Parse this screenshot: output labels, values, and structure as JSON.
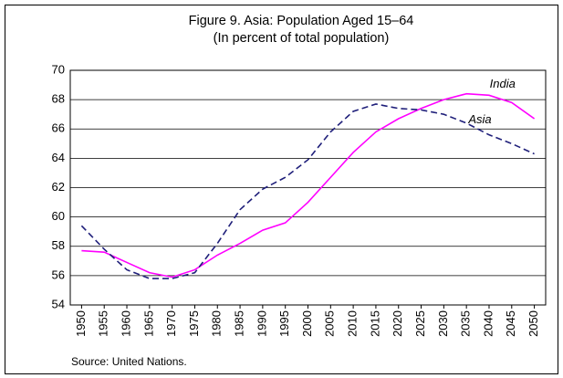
{
  "chart_data": {
    "type": "line",
    "title": "Figure 9. Asia: Population Aged 15–64",
    "subtitle": "(In percent of total population)",
    "source": "Source: United Nations.",
    "categories": [
      "1950",
      "1955",
      "1960",
      "1965",
      "1970",
      "1975",
      "1980",
      "1985",
      "1990",
      "1995",
      "2000",
      "2005",
      "2010",
      "2015",
      "2020",
      "2025",
      "2030",
      "2035",
      "2040",
      "2045",
      "2050"
    ],
    "series": [
      {
        "name": "India",
        "color": "#ff00ff",
        "dash": false,
        "values": [
          57.7,
          57.6,
          56.9,
          56.2,
          55.9,
          56.4,
          57.4,
          58.2,
          59.1,
          59.6,
          61.0,
          62.7,
          64.4,
          65.8,
          66.7,
          67.4,
          68.0,
          68.4,
          68.3,
          67.8,
          66.7
        ]
      },
      {
        "name": "Asia",
        "color": "#1f1f7a",
        "dash": true,
        "values": [
          59.4,
          57.8,
          56.4,
          55.8,
          55.8,
          56.2,
          58.2,
          60.5,
          61.9,
          62.7,
          63.9,
          65.8,
          67.2,
          67.7,
          67.4,
          67.3,
          67.0,
          66.4,
          65.6,
          65.0,
          64.3
        ]
      }
    ],
    "ylim": [
      54,
      70
    ],
    "yticks": [
      54,
      56,
      58,
      60,
      62,
      64,
      66,
      68,
      70
    ],
    "grid": true
  }
}
